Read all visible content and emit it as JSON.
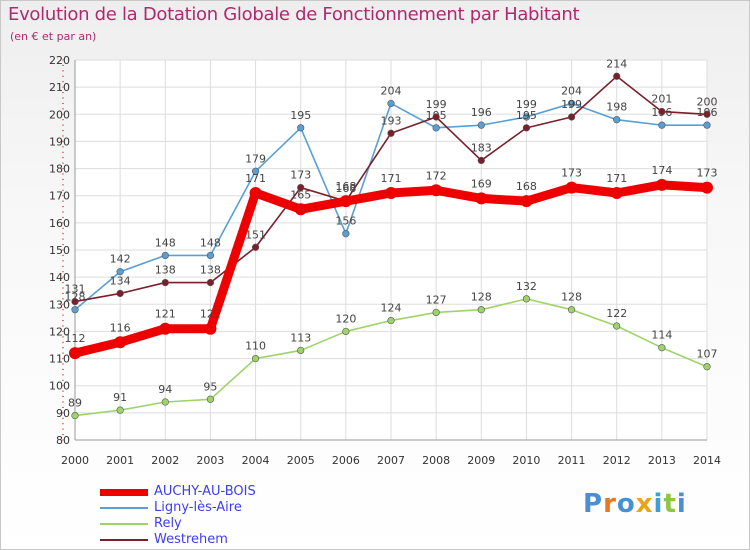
{
  "header": {
    "title": "Evolution de la Dotation Globale de Fonctionnement par Habitant",
    "subtitle": "(en € et par an)"
  },
  "chart_data": {
    "type": "line",
    "title": "Evolution de la Dotation Globale de Fonctionnement par Habitant",
    "subtitle": "(en € et par an)",
    "xlabel": "",
    "ylabel": "",
    "x": [
      "2000",
      "2001",
      "2002",
      "2003",
      "2004",
      "2005",
      "2006",
      "2007",
      "2008",
      "2009",
      "2010",
      "2011",
      "2012",
      "2013",
      "2014"
    ],
    "ylim": [
      80,
      220
    ],
    "yticks": [
      80,
      90,
      100,
      110,
      120,
      130,
      140,
      150,
      160,
      170,
      180,
      190,
      200,
      210,
      220
    ],
    "grid": true,
    "legend_position": "bottom-left",
    "series": [
      {
        "name": "Ligny-lès-Aire",
        "color": "#5a9fd4",
        "emphasis": false,
        "values": [
          128,
          142,
          148,
          148,
          179,
          195,
          156,
          204,
          195,
          196,
          199,
          204,
          198,
          196,
          196
        ]
      },
      {
        "name": "Westrehem",
        "color": "#7a1f2b",
        "emphasis": false,
        "values": [
          131,
          134,
          138,
          138,
          151,
          173,
          168,
          193,
          199,
          183,
          195,
          199,
          214,
          201,
          200
        ]
      },
      {
        "name": "Rely",
        "color": "#9ed36a",
        "emphasis": false,
        "values": [
          89,
          91,
          94,
          95,
          110,
          113,
          120,
          124,
          127,
          128,
          132,
          128,
          122,
          114,
          107
        ]
      },
      {
        "name": "AUCHY-AU-BOIS",
        "color": "#ee0000",
        "emphasis": true,
        "values": [
          112,
          116,
          121,
          121,
          171,
          165,
          168,
          171,
          172,
          169,
          168,
          173,
          171,
          174,
          173
        ]
      }
    ]
  },
  "legend": {
    "items": [
      {
        "label": "AUCHY-AU-BOIS",
        "color": "#ee0000"
      },
      {
        "label": "Ligny-lès-Aire",
        "color": "#5a9fd4"
      },
      {
        "label": "Rely",
        "color": "#9ed36a"
      },
      {
        "label": "Westrehem",
        "color": "#7a1f2b"
      }
    ]
  },
  "logo": {
    "letters": [
      {
        "ch": "P",
        "color": "#4a8fd0"
      },
      {
        "ch": "r",
        "color": "#e87722"
      },
      {
        "ch": "o",
        "color": "#4a8fd0"
      },
      {
        "ch": "x",
        "color": "#e8a617"
      },
      {
        "ch": "i",
        "color": "#3aa0d8"
      },
      {
        "ch": "t",
        "color": "#8dc63f"
      },
      {
        "ch": "i",
        "color": "#4a8fd0"
      }
    ]
  }
}
